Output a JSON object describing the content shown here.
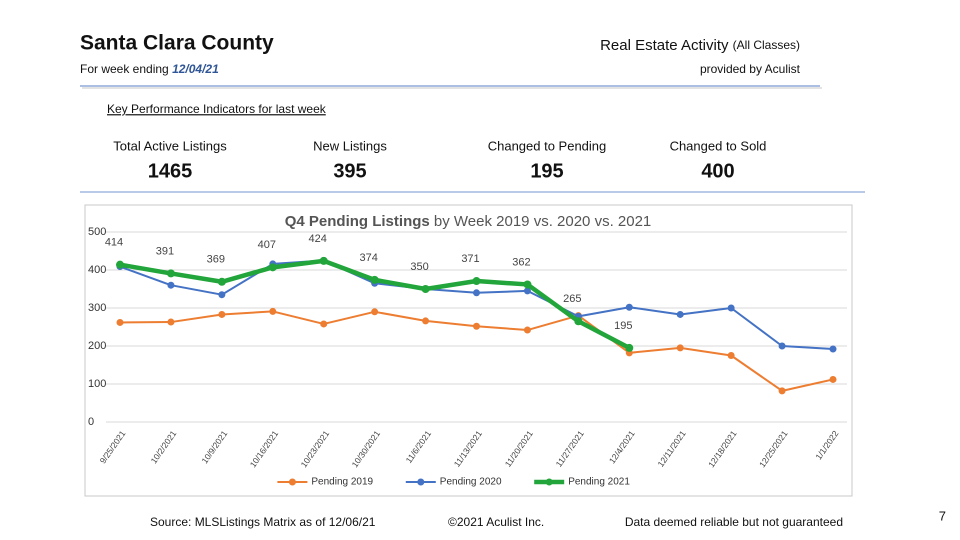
{
  "header": {
    "title": "Santa Clara County",
    "week_ending_prefix": "For week ending",
    "week_ending_date": "12/04/21",
    "report_title": "Real Estate Activity",
    "report_note": "(All Classes)",
    "provider": "provided by Aculist"
  },
  "kpi": {
    "heading": "Key Performance Indicators for last week",
    "items": [
      {
        "label": "Total Active Listings",
        "value": 1465
      },
      {
        "label": "New Listings",
        "value": 395
      },
      {
        "label": "Changed to Pending",
        "value": 195
      },
      {
        "label": "Changed to Sold",
        "value": 400
      }
    ]
  },
  "chart_data": {
    "type": "line",
    "title": [
      "Q4 Pending Listings",
      "by Week 2019 vs. 2020 vs. 2021"
    ],
    "categories": [
      "9/25/2021",
      "10/2/2021",
      "10/9/2021",
      "10/16/2021",
      "10/23/2021",
      "10/30/2021",
      "11/6/2021",
      "11/13/2021",
      "11/20/2021",
      "11/27/2021",
      "12/4/2021",
      "12/11/2021",
      "12/18/2021",
      "12/25/2021",
      "1/1/2022"
    ],
    "series": [
      {
        "name": "Pending 2019",
        "color": "#ed7d31",
        "width": 2,
        "values": [
          262,
          263,
          283,
          291,
          258,
          290,
          266,
          252,
          242,
          280,
          182,
          195,
          175,
          82,
          112
        ]
      },
      {
        "name": "Pending 2020",
        "color": "#4472c4",
        "width": 2,
        "values": [
          409,
          360,
          335,
          416,
          425,
          365,
          350,
          340,
          345,
          278,
          302,
          283,
          300,
          200,
          192
        ]
      },
      {
        "name": "Pending 2021",
        "color": "#22a53a",
        "width": 4.5,
        "data_labels": true,
        "values": [
          414,
          391,
          369,
          407,
          424,
          374,
          350,
          371,
          362,
          265,
          195,
          null,
          null,
          null,
          null
        ]
      }
    ],
    "ylim": [
      0,
      500
    ],
    "yticks": [
      0,
      100,
      200,
      300,
      400,
      500
    ],
    "grid": true,
    "legend": "bottom"
  },
  "footer": {
    "source": "Source: MLSListings Matrix as of 12/06/21",
    "copyright": "©2021 Aculist Inc.",
    "disclaimer": "Data deemed reliable but not guaranteed",
    "page_number": 7
  }
}
